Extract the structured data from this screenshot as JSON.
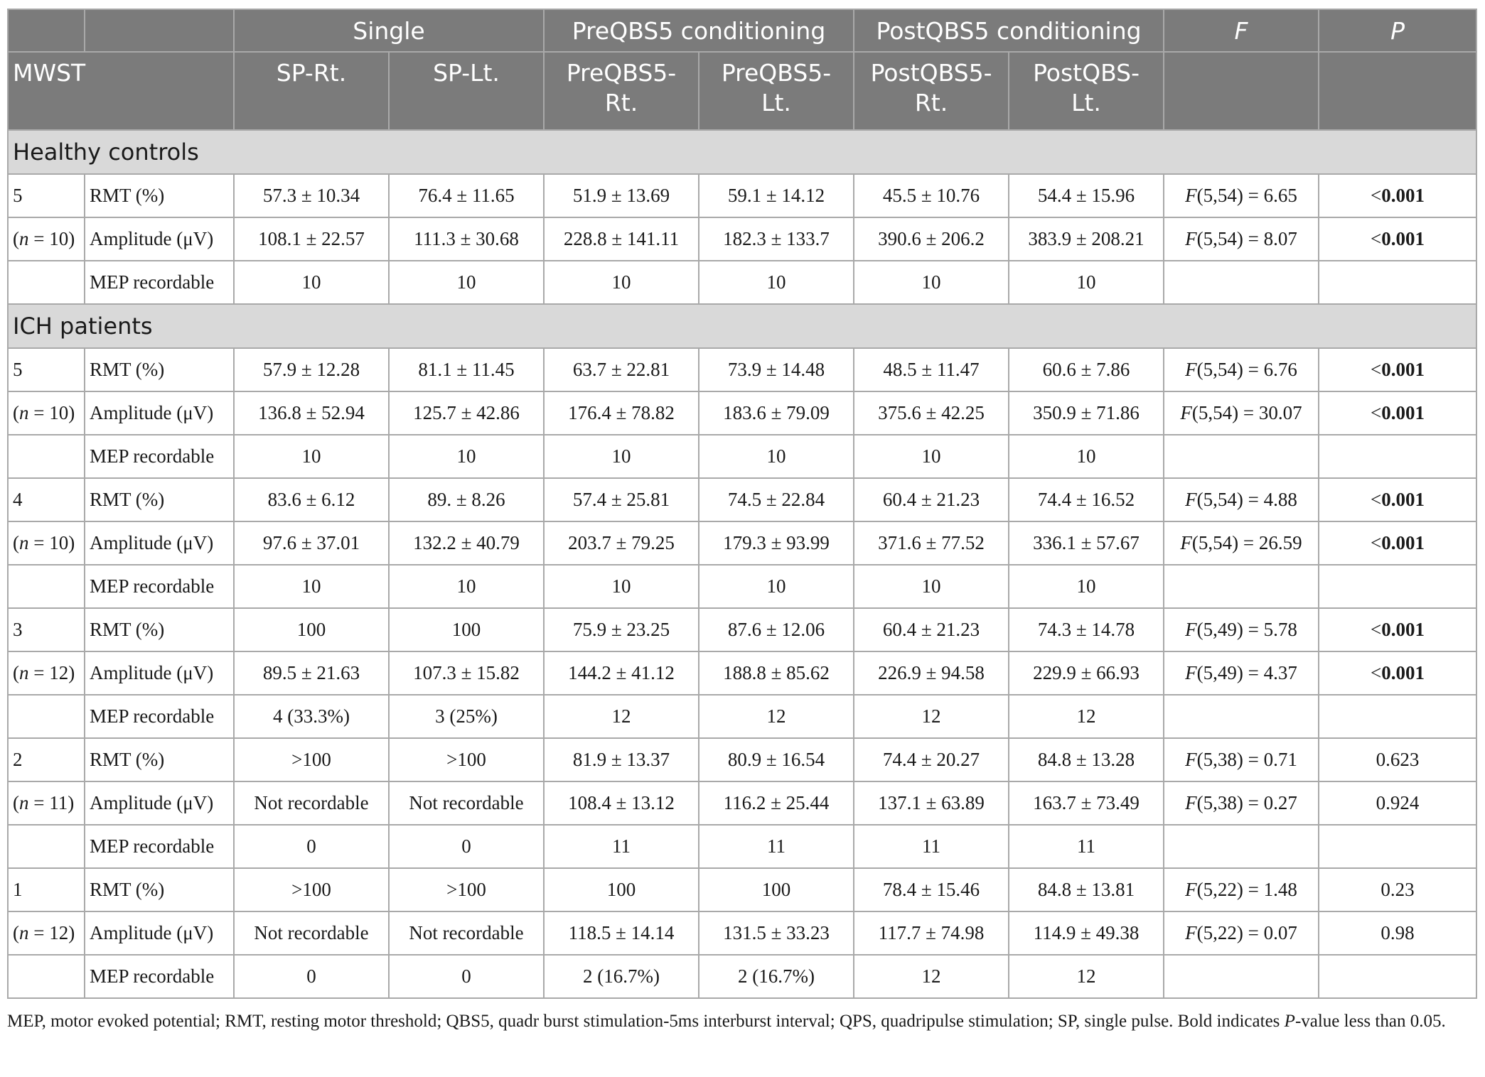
{
  "table": {
    "group_headers": [
      "",
      "",
      "Single",
      "PreQBS5 conditioning",
      "PostQBS5 conditioning",
      "F",
      "P"
    ],
    "col_headers": [
      "MWST",
      "SP-Rt.",
      "SP-Lt.",
      "PreQBS5-\nRt.",
      "PreQBS5-\nLt.",
      "PostQBS5-\nRt.",
      "PostQBS-\nLt.",
      "",
      ""
    ],
    "sections": [
      {
        "title": "Healthy controls",
        "rows": [
          {
            "c0": "5",
            "c1": "RMT (%)",
            "sprt": "57.3 ± 10.34",
            "splt": "76.4 ± 11.65",
            "prert": "51.9 ± 13.69",
            "prelt": "59.1 ± 14.12",
            "postrt": "45.5 ± 10.76",
            "postlt": "54.4 ± 15.96",
            "f": "F(5,54) = 6.65",
            "p_prefix": "<",
            "p_bold": "0.001",
            "p_plain": ""
          },
          {
            "c0": "(n = 10)",
            "c1": "Amplitude (μV)",
            "sprt": "108.1 ± 22.57",
            "splt": "111.3 ± 30.68",
            "prert": "228.8 ± 141.11",
            "prelt": "182.3 ± 133.7",
            "postrt": "390.6 ± 206.2",
            "postlt": "383.9 ± 208.21",
            "f": "F(5,54) = 8.07",
            "p_prefix": "<",
            "p_bold": "0.001",
            "p_plain": ""
          },
          {
            "c0": "",
            "c1": "MEP recordable",
            "sprt": "10",
            "splt": "10",
            "prert": "10",
            "prelt": "10",
            "postrt": "10",
            "postlt": "10",
            "f": "",
            "p_prefix": "",
            "p_bold": "",
            "p_plain": ""
          }
        ]
      },
      {
        "title": "ICH patients",
        "rows": [
          {
            "c0": "5",
            "c1": "RMT (%)",
            "sprt": "57.9 ± 12.28",
            "splt": "81.1 ± 11.45",
            "prert": "63.7 ± 22.81",
            "prelt": "73.9 ± 14.48",
            "postrt": "48.5 ± 11.47",
            "postlt": "60.6 ± 7.86",
            "f": "F(5,54) = 6.76",
            "p_prefix": "<",
            "p_bold": "0.001",
            "p_plain": ""
          },
          {
            "c0": "(n = 10)",
            "c1": "Amplitude (μV)",
            "sprt": "136.8 ± 52.94",
            "splt": "125.7 ± 42.86",
            "prert": "176.4 ± 78.82",
            "prelt": "183.6 ± 79.09",
            "postrt": "375.6 ± 42.25",
            "postlt": "350.9 ± 71.86",
            "f": "F(5,54) = 30.07",
            "p_prefix": "<",
            "p_bold": "0.001",
            "p_plain": ""
          },
          {
            "c0": "",
            "c1": "MEP recordable",
            "sprt": "10",
            "splt": "10",
            "prert": "10",
            "prelt": "10",
            "postrt": "10",
            "postlt": "10",
            "f": "",
            "p_prefix": "",
            "p_bold": "",
            "p_plain": ""
          },
          {
            "c0": "4",
            "c1": "RMT (%)",
            "sprt": "83.6 ± 6.12",
            "splt": "89. ± 8.26",
            "prert": "57.4 ± 25.81",
            "prelt": "74.5 ± 22.84",
            "postrt": "60.4 ± 21.23",
            "postlt": "74.4 ± 16.52",
            "f": "F(5,54) = 4.88",
            "p_prefix": "<",
            "p_bold": "0.001",
            "p_plain": ""
          },
          {
            "c0": "(n = 10)",
            "c1": "Amplitude (μV)",
            "sprt": "97.6 ± 37.01",
            "splt": "132.2 ± 40.79",
            "prert": "203.7 ± 79.25",
            "prelt": "179.3 ± 93.99",
            "postrt": "371.6 ± 77.52",
            "postlt": "336.1 ± 57.67",
            "f": "F(5,54) = 26.59",
            "p_prefix": "<",
            "p_bold": "0.001",
            "p_plain": ""
          },
          {
            "c0": "",
            "c1": "MEP recordable",
            "sprt": "10",
            "splt": "10",
            "prert": "10",
            "prelt": "10",
            "postrt": "10",
            "postlt": "10",
            "f": "",
            "p_prefix": "",
            "p_bold": "",
            "p_plain": ""
          },
          {
            "c0": "3",
            "c1": "RMT (%)",
            "sprt": "100",
            "splt": "100",
            "prert": "75.9 ± 23.25",
            "prelt": "87.6 ± 12.06",
            "postrt": "60.4 ± 21.23",
            "postlt": "74.3 ± 14.78",
            "f": "F(5,49) = 5.78",
            "p_prefix": "<",
            "p_bold": "0.001",
            "p_plain": ""
          },
          {
            "c0": "(n = 12)",
            "c1": "Amplitude (μV)",
            "sprt": "89.5 ± 21.63",
            "splt": "107.3 ± 15.82",
            "prert": "144.2 ± 41.12",
            "prelt": "188.8 ± 85.62",
            "postrt": "226.9 ± 94.58",
            "postlt": "229.9 ± 66.93",
            "f": "F(5,49) = 4.37",
            "p_prefix": "<",
            "p_bold": "0.001",
            "p_plain": ""
          },
          {
            "c0": "",
            "c1": "MEP recordable",
            "sprt": "4 (33.3%)",
            "splt": "3 (25%)",
            "prert": "12",
            "prelt": "12",
            "postrt": "12",
            "postlt": "12",
            "f": "",
            "p_prefix": "",
            "p_bold": "",
            "p_plain": ""
          },
          {
            "c0": "2",
            "c1": "RMT (%)",
            "sprt": ">100",
            "splt": ">100",
            "prert": "81.9 ± 13.37",
            "prelt": "80.9 ± 16.54",
            "postrt": "74.4 ± 20.27",
            "postlt": "84.8 ± 13.28",
            "f": "F(5,38) = 0.71",
            "p_prefix": "",
            "p_bold": "",
            "p_plain": "0.623"
          },
          {
            "c0": "(n = 11)",
            "c1": "Amplitude (μV)",
            "sprt": "Not recordable",
            "splt": "Not recordable",
            "prert": "108.4 ± 13.12",
            "prelt": "116.2 ± 25.44",
            "postrt": "137.1 ± 63.89",
            "postlt": "163.7 ± 73.49",
            "f": "F(5,38) = 0.27",
            "p_prefix": "",
            "p_bold": "",
            "p_plain": "0.924"
          },
          {
            "c0": "",
            "c1": "MEP recordable",
            "sprt": "0",
            "splt": "0",
            "prert": "11",
            "prelt": "11",
            "postrt": "11",
            "postlt": "11",
            "f": "",
            "p_prefix": "",
            "p_bold": "",
            "p_plain": ""
          },
          {
            "c0": "1",
            "c1": "RMT (%)",
            "sprt": ">100",
            "splt": ">100",
            "prert": "100",
            "prelt": "100",
            "postrt": "78.4 ± 15.46",
            "postlt": "84.8 ± 13.81",
            "f": "F(5,22) = 1.48",
            "p_prefix": "",
            "p_bold": "",
            "p_plain": "0.23"
          },
          {
            "c0": "(n = 12)",
            "c1": "Amplitude (μV)",
            "sprt": "Not recordable",
            "splt": "Not recordable",
            "prert": "118.5 ± 14.14",
            "prelt": "131.5 ± 33.23",
            "postrt": "117.7 ± 74.98",
            "postlt": "114.9 ± 49.38",
            "f": "F(5,22) = 0.07",
            "p_prefix": "",
            "p_bold": "",
            "p_plain": "0.98"
          },
          {
            "c0": "",
            "c1": "MEP recordable",
            "sprt": "0",
            "splt": "0",
            "prert": "2 (16.7%)",
            "prelt": "2 (16.7%)",
            "postrt": "12",
            "postlt": "12",
            "f": "",
            "p_prefix": "",
            "p_bold": "",
            "p_plain": ""
          }
        ]
      }
    ]
  },
  "footnote": "MEP, motor evoked potential; RMT, resting motor threshold; QBS5, quadr burst stimulation-5ms interburst interval; QPS, quadripulse stimulation; SP, single pulse. Bold indicates P-value less than 0.05."
}
